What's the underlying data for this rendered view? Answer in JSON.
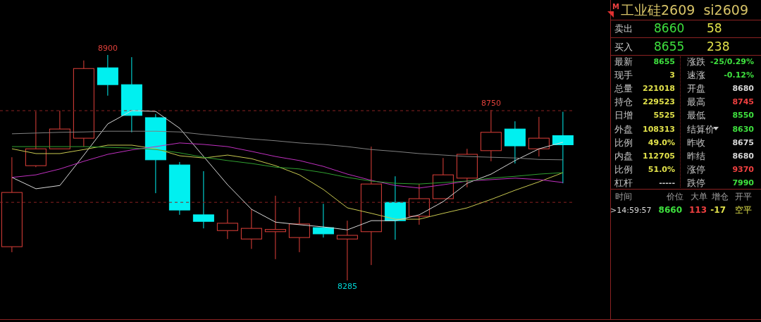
{
  "chart_data": [
    {
      "type": "candlestick",
      "categories": [
        null,
        null,
        null,
        null,
        null,
        null,
        null,
        null,
        null,
        null,
        null,
        null,
        null,
        null,
        null,
        null,
        null,
        null,
        null,
        null,
        null,
        null,
        null,
        null
      ],
      "ohlc": [
        [
          8377,
          8621,
          8362,
          8525
        ],
        [
          8598,
          8746,
          8594,
          8644
        ],
        [
          8644,
          8748,
          8644,
          8698
        ],
        [
          8673,
          8885,
          8650,
          8863
        ],
        [
          8865,
          8900,
          8789,
          8819
        ],
        [
          8819,
          8894,
          8689,
          8735
        ],
        [
          8729,
          8739,
          8523,
          8614
        ],
        [
          8600,
          8608,
          8464,
          8477
        ],
        [
          8464,
          8583,
          8427,
          8446
        ],
        [
          8421,
          8479,
          8398,
          8441
        ],
        [
          8398,
          8479,
          8371,
          8427
        ],
        [
          8418,
          8516,
          8343,
          8424
        ],
        [
          8402,
          8485,
          8362,
          8439
        ],
        [
          8429,
          8494,
          8402,
          8412
        ],
        [
          8398,
          8448,
          8285,
          8408
        ],
        [
          8418,
          8650,
          8327,
          8548
        ],
        [
          8498,
          8569,
          8396,
          8448
        ],
        [
          8460,
          8548,
          8437,
          8508
        ],
        [
          8508,
          8619,
          8508,
          8573
        ],
        [
          8564,
          8644,
          8539,
          8629
        ],
        [
          8639,
          8750,
          8610,
          8689
        ],
        [
          8698,
          8719,
          8604,
          8652
        ],
        [
          8644,
          8731,
          8623,
          8673
        ],
        [
          8680,
          8745,
          8550,
          8655
        ]
      ],
      "colors": [
        "#e0403a",
        "#e0403a",
        "#e0403a",
        "#e0403a",
        "#00f0f0",
        "#00f0f0",
        "#00f0f0",
        "#00f0f0",
        "#00f0f0",
        "#e0403a",
        "#e0403a",
        "#e0403a",
        "#e0403a",
        "#00f0f0",
        "#e0403a",
        "#e0403a",
        "#00f0f0",
        "#e0403a",
        "#e0403a",
        "#e0403a",
        "#e0403a",
        "#00f0f0",
        "#e0403a",
        "#00f0f0"
      ],
      "series": [
        {
          "type": "line",
          "color": "#d8d8d8",
          "values": [
            8566,
            8535,
            8544,
            8627,
            8712,
            8748,
            8746,
            8700,
            8623,
            8546,
            8479,
            8444,
            8437,
            8431,
            8423,
            8448,
            8448,
            8464,
            8500,
            8550,
            8575,
            8612,
            8644,
            8662
          ]
        },
        {
          "type": "line",
          "color": "#c8c850",
          "values": [
            8644,
            8631,
            8631,
            8642,
            8654,
            8654,
            8644,
            8625,
            8619,
            8627,
            8617,
            8598,
            8573,
            8533,
            8483,
            8468,
            8452,
            8452,
            8468,
            8483,
            8506,
            8531,
            8554,
            8579
          ]
        },
        {
          "type": "line",
          "color": "#c030c0",
          "values": [
            8566,
            8573,
            8589,
            8610,
            8629,
            8641,
            8650,
            8660,
            8656,
            8650,
            8637,
            8623,
            8612,
            8596,
            8575,
            8558,
            8544,
            8537,
            8546,
            8556,
            8560,
            8564,
            8560,
            8552
          ]
        },
        {
          "type": "line",
          "color": "#30a030",
          "values": [
            8650,
            8650,
            8650,
            8650,
            8648,
            8646,
            8642,
            8633,
            8621,
            8612,
            8604,
            8594,
            8589,
            8579,
            8566,
            8556,
            8550,
            8548,
            8552,
            8556,
            8564,
            8569,
            8575,
            8579
          ]
        },
        {
          "type": "line",
          "color": "#808080",
          "values": [
            8685,
            8687,
            8689,
            8690,
            8692,
            8692,
            8692,
            8690,
            8683,
            8677,
            8671,
            8666,
            8660,
            8656,
            8650,
            8642,
            8637,
            8631,
            8627,
            8623,
            8621,
            8619,
            8615,
            8614
          ]
        }
      ],
      "ref_lines": [
        {
          "axis": "y",
          "value": 8748,
          "color": "#8b2222",
          "line_style": "dashed"
        },
        {
          "axis": "y",
          "value": 8498,
          "color": "#8b2222",
          "line_style": "dashed"
        }
      ],
      "annotations": [
        {
          "text": "8900",
          "y": 8900
        },
        {
          "text": "8750",
          "y": 8750
        },
        {
          "text": "8285",
          "y": 8285
        }
      ],
      "tick_labels": false
    },
    {
      "type": "other",
      "title": "工业硅2609  si2609",
      "annotations": [
        "M",
        "卖出",
        "8660",
        "58",
        "买入",
        "8655",
        "238",
        "最新",
        "8655",
        "涨跌",
        "-25/0.29%",
        "现手",
        "3",
        "速涨",
        "-0.12%",
        "总量",
        "221018",
        "开盘",
        "8680",
        "持仓",
        "229523",
        "最高",
        "8745",
        "日增",
        "5525",
        "最低",
        "8550",
        "外盘",
        "108313",
        "结算价",
        "8630",
        "比例",
        "49.0%",
        "昨收",
        "8675",
        "内盘",
        "112705",
        "昨结",
        "8680",
        "比例",
        "51.0%",
        "涨停",
        "9370",
        "杠杆",
        "-----",
        "跌停",
        "7990",
        "时间",
        "价位",
        "大单",
        "增仓",
        "开平",
        ">14:59:57",
        "8660",
        "113",
        "-17",
        "空平"
      ]
    }
  ]
}
